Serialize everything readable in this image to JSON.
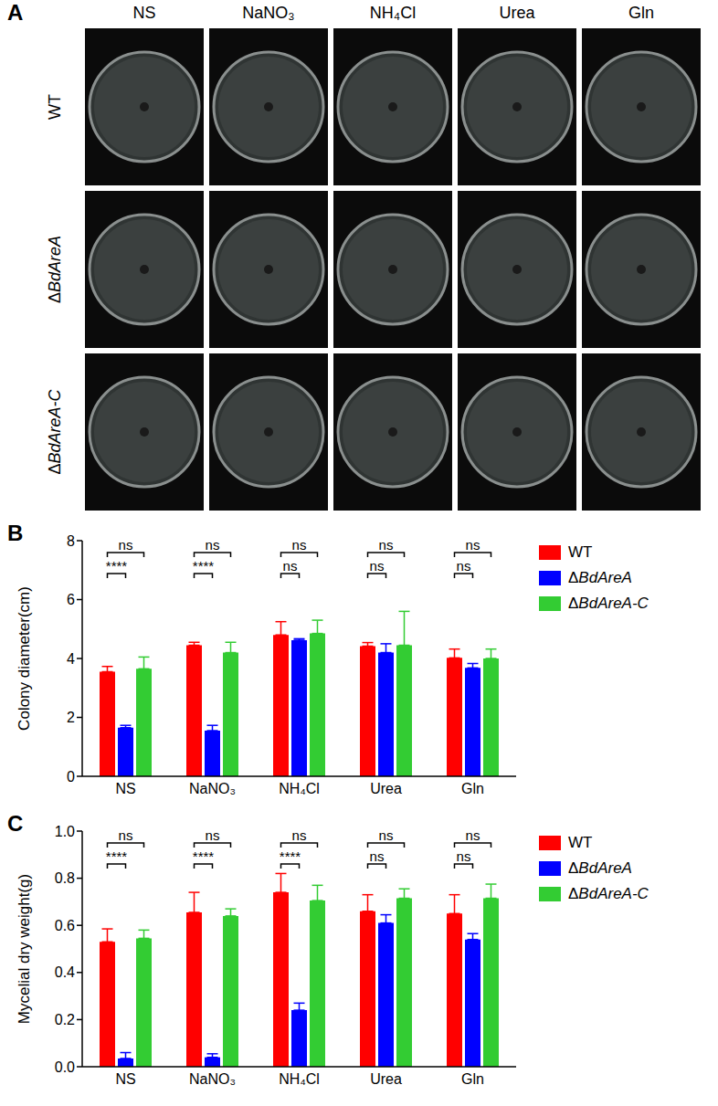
{
  "panel_A": {
    "letter": "A",
    "columns": [
      "NS",
      "NaNO₃",
      "NH₄Cl",
      "Urea",
      "Gln"
    ],
    "rows": [
      "WT",
      "ΔBdAreA",
      "ΔBdAreA-C"
    ]
  },
  "chart_data": [
    {
      "panel": "B",
      "type": "bar",
      "ylabel": "Colony diameter(cm)",
      "categories": [
        "NS",
        "NaNO₃",
        "NH₄Cl",
        "Urea",
        "Gln"
      ],
      "series": [
        {
          "name": "WT",
          "color": "#ff0000",
          "values": [
            3.55,
            4.45,
            4.8,
            4.42,
            4.02
          ],
          "errors": [
            0.18,
            0.1,
            0.45,
            0.12,
            0.3
          ]
        },
        {
          "name": "ΔBdAreA",
          "color": "#0000ff",
          "values": [
            1.65,
            1.55,
            4.62,
            4.2,
            3.68
          ],
          "errors": [
            0.08,
            0.18,
            0.05,
            0.3,
            0.15
          ]
        },
        {
          "name": "ΔBdAreA-C",
          "color": "#33cc33",
          "values": [
            3.65,
            4.2,
            4.85,
            4.45,
            4.0
          ],
          "errors": [
            0.4,
            0.35,
            0.45,
            1.15,
            0.32
          ]
        }
      ],
      "ylim": [
        0,
        8
      ],
      "yticks": [
        0,
        2,
        4,
        6,
        8
      ],
      "grid": false,
      "legend": "upper right",
      "annotations": [
        {
          "category": "NS",
          "between": [
            "WT",
            "ΔBdAreA"
          ],
          "label": "****"
        },
        {
          "category": "NS",
          "between": [
            "WT",
            "ΔBdAreA-C"
          ],
          "label": "ns"
        },
        {
          "category": "NaNO₃",
          "between": [
            "WT",
            "ΔBdAreA"
          ],
          "label": "****"
        },
        {
          "category": "NaNO₃",
          "between": [
            "WT",
            "ΔBdAreA-C"
          ],
          "label": "ns"
        },
        {
          "category": "NH₄Cl",
          "between": [
            "WT",
            "ΔBdAreA"
          ],
          "label": "ns"
        },
        {
          "category": "NH₄Cl",
          "between": [
            "WT",
            "ΔBdAreA-C"
          ],
          "label": "ns"
        },
        {
          "category": "Urea",
          "between": [
            "WT",
            "ΔBdAreA"
          ],
          "label": "ns"
        },
        {
          "category": "Urea",
          "between": [
            "WT",
            "ΔBdAreA-C"
          ],
          "label": "ns"
        },
        {
          "category": "Gln",
          "between": [
            "WT",
            "ΔBdAreA"
          ],
          "label": "ns"
        },
        {
          "category": "Gln",
          "between": [
            "WT",
            "ΔBdAreA-C"
          ],
          "label": "ns"
        }
      ]
    },
    {
      "panel": "C",
      "type": "bar",
      "ylabel": "Mycelial dry weight(g)",
      "categories": [
        "NS",
        "NaNO₃",
        "NH₄Cl",
        "Urea",
        "Gln"
      ],
      "series": [
        {
          "name": "WT",
          "color": "#ff0000",
          "values": [
            0.53,
            0.655,
            0.74,
            0.66,
            0.65
          ],
          "errors": [
            0.055,
            0.085,
            0.08,
            0.07,
            0.08
          ]
        },
        {
          "name": "ΔBdAreA",
          "color": "#0000ff",
          "values": [
            0.035,
            0.04,
            0.24,
            0.61,
            0.54
          ],
          "errors": [
            0.025,
            0.015,
            0.03,
            0.035,
            0.025
          ]
        },
        {
          "name": "ΔBdAreA-C",
          "color": "#33cc33",
          "values": [
            0.545,
            0.64,
            0.705,
            0.715,
            0.715
          ],
          "errors": [
            0.035,
            0.03,
            0.065,
            0.04,
            0.06
          ]
        }
      ],
      "ylim": [
        0,
        1
      ],
      "yticks": [
        {
          "value": 0,
          "label": "0.0"
        },
        0.2,
        0.4,
        0.6,
        0.8,
        {
          "value": 1,
          "label": "1.0"
        }
      ],
      "grid": false,
      "legend": "upper right",
      "annotations": [
        {
          "category": "NS",
          "between": [
            "WT",
            "ΔBdAreA"
          ],
          "label": "****"
        },
        {
          "category": "NS",
          "between": [
            "WT",
            "ΔBdAreA-C"
          ],
          "label": "ns"
        },
        {
          "category": "NaNO₃",
          "between": [
            "WT",
            "ΔBdAreA"
          ],
          "label": "****"
        },
        {
          "category": "NaNO₃",
          "between": [
            "WT",
            "ΔBdAreA-C"
          ],
          "label": "ns"
        },
        {
          "category": "NH₄Cl",
          "between": [
            "WT",
            "ΔBdAreA"
          ],
          "label": "****"
        },
        {
          "category": "NH₄Cl",
          "between": [
            "WT",
            "ΔBdAreA-C"
          ],
          "label": "ns"
        },
        {
          "category": "Urea",
          "between": [
            "WT",
            "ΔBdAreA"
          ],
          "label": "ns"
        },
        {
          "category": "Urea",
          "between": [
            "WT",
            "ΔBdAreA-C"
          ],
          "label": "ns"
        },
        {
          "category": "Gln",
          "between": [
            "WT",
            "ΔBdAreA"
          ],
          "label": "ns"
        },
        {
          "category": "Gln",
          "between": [
            "WT",
            "ΔBdAreA-C"
          ],
          "label": "ns"
        }
      ]
    }
  ]
}
